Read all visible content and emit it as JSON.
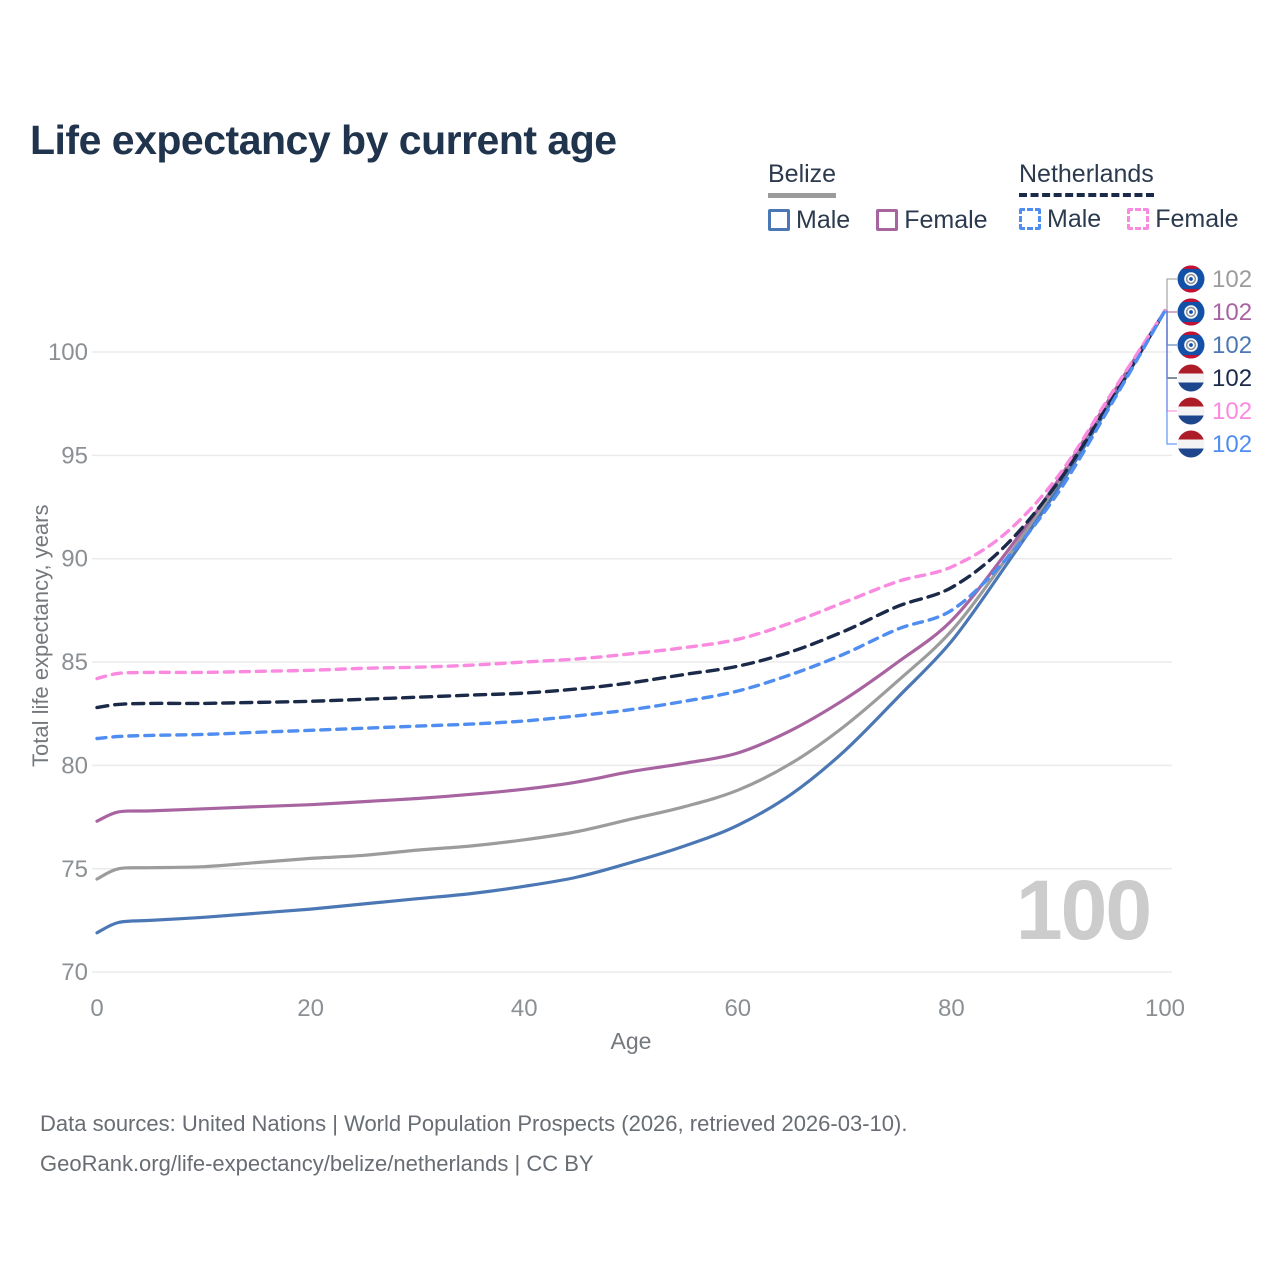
{
  "title": "Life expectancy by current age",
  "watermark": "100",
  "legend": {
    "groups": [
      {
        "country": "Belize",
        "line_style": "solid",
        "underline_color": "#9b9b9b",
        "items": [
          {
            "label": "Male",
            "color": "#4b78b5",
            "dashed": false
          },
          {
            "label": "Female",
            "color": "#a864a0",
            "dashed": false
          }
        ]
      },
      {
        "country": "Netherlands",
        "line_style": "dashed",
        "underline_color": "#1b2a49",
        "items": [
          {
            "label": "Male",
            "color": "#4f8df0",
            "dashed": true
          },
          {
            "label": "Female",
            "color": "#f98ae0",
            "dashed": true
          }
        ]
      }
    ]
  },
  "axes": {
    "x": {
      "title": "Age",
      "ticks": [
        0,
        20,
        40,
        60,
        80,
        100
      ],
      "range": [
        0,
        100
      ]
    },
    "y": {
      "title": "Total life expectancy, years",
      "ticks": [
        70,
        75,
        80,
        85,
        90,
        95,
        100
      ],
      "range": [
        70,
        103
      ]
    }
  },
  "footer": {
    "line1": "Data sources: United Nations | World Population Prospects (2026, retrieved 2026-03-10).",
    "line2": "GeoRank.org/life-expectancy/belize/netherlands | CC BY"
  },
  "chart_data": {
    "type": "line",
    "title": "Life expectancy by current age",
    "xlabel": "Age",
    "ylabel": "Total life expectancy, years",
    "xlim": [
      0,
      100
    ],
    "ylim": [
      70,
      103
    ],
    "grid": "horizontal",
    "legend_position": "top-right",
    "ages": [
      0,
      2,
      5,
      10,
      15,
      20,
      25,
      30,
      35,
      40,
      45,
      50,
      55,
      60,
      65,
      70,
      75,
      80,
      85,
      90,
      95,
      100
    ],
    "series": [
      {
        "name": "Belize (both sexes)",
        "country": "Belize",
        "sex": "total",
        "color": "#9c9c9c",
        "dashed": false,
        "dash": "",
        "flag": "belize",
        "end_label": "102",
        "values": [
          74.5,
          75.0,
          75.05,
          75.1,
          75.3,
          75.5,
          75.65,
          75.9,
          76.1,
          76.4,
          76.8,
          77.4,
          78.0,
          78.8,
          80.1,
          81.9,
          84.1,
          86.5,
          89.9,
          93.6,
          97.8,
          102
        ]
      },
      {
        "name": "Belize Female",
        "country": "Belize",
        "sex": "female",
        "color": "#a864a0",
        "dashed": false,
        "dash": "",
        "flag": "belize",
        "end_label": "102",
        "values": [
          77.3,
          77.75,
          77.8,
          77.9,
          78.0,
          78.1,
          78.25,
          78.4,
          78.6,
          78.85,
          79.2,
          79.7,
          80.1,
          80.6,
          81.7,
          83.2,
          85.0,
          87.0,
          90.2,
          93.8,
          97.9,
          102
        ]
      },
      {
        "name": "Belize Male",
        "country": "Belize",
        "sex": "male",
        "color": "#4b78b5",
        "dashed": false,
        "dash": "",
        "flag": "belize",
        "end_label": "102",
        "values": [
          71.9,
          72.4,
          72.5,
          72.65,
          72.85,
          73.05,
          73.3,
          73.55,
          73.8,
          74.15,
          74.6,
          75.3,
          76.1,
          77.1,
          78.6,
          80.7,
          83.3,
          86.0,
          89.6,
          93.4,
          97.6,
          102
        ]
      },
      {
        "name": "Netherlands (both sexes)",
        "country": "Netherlands",
        "sex": "total",
        "color": "#1b2a49",
        "dashed": true,
        "dash": "11 7",
        "flag": "netherlands",
        "end_label": "102",
        "values": [
          82.8,
          82.95,
          83.0,
          83.0,
          83.05,
          83.1,
          83.2,
          83.3,
          83.4,
          83.5,
          83.7,
          84.0,
          84.4,
          84.8,
          85.5,
          86.5,
          87.7,
          88.6,
          90.6,
          93.7,
          97.7,
          102
        ]
      },
      {
        "name": "Netherlands Female",
        "country": "Netherlands",
        "sex": "female",
        "color": "#f98ae0",
        "dashed": true,
        "dash": "9 7",
        "flag": "netherlands",
        "end_label": "102",
        "values": [
          84.2,
          84.45,
          84.5,
          84.5,
          84.55,
          84.6,
          84.7,
          84.75,
          84.85,
          85.0,
          85.15,
          85.4,
          85.7,
          86.1,
          86.9,
          87.9,
          88.9,
          89.6,
          91.2,
          94.0,
          98.0,
          102
        ]
      },
      {
        "name": "Netherlands Male",
        "country": "Netherlands",
        "sex": "male",
        "color": "#4f8df0",
        "dashed": true,
        "dash": "9 7",
        "flag": "netherlands",
        "end_label": "102",
        "values": [
          81.3,
          81.4,
          81.45,
          81.5,
          81.6,
          81.7,
          81.8,
          81.9,
          82.0,
          82.15,
          82.4,
          82.7,
          83.1,
          83.6,
          84.4,
          85.4,
          86.6,
          87.5,
          89.9,
          93.2,
          97.5,
          102
        ]
      }
    ]
  }
}
